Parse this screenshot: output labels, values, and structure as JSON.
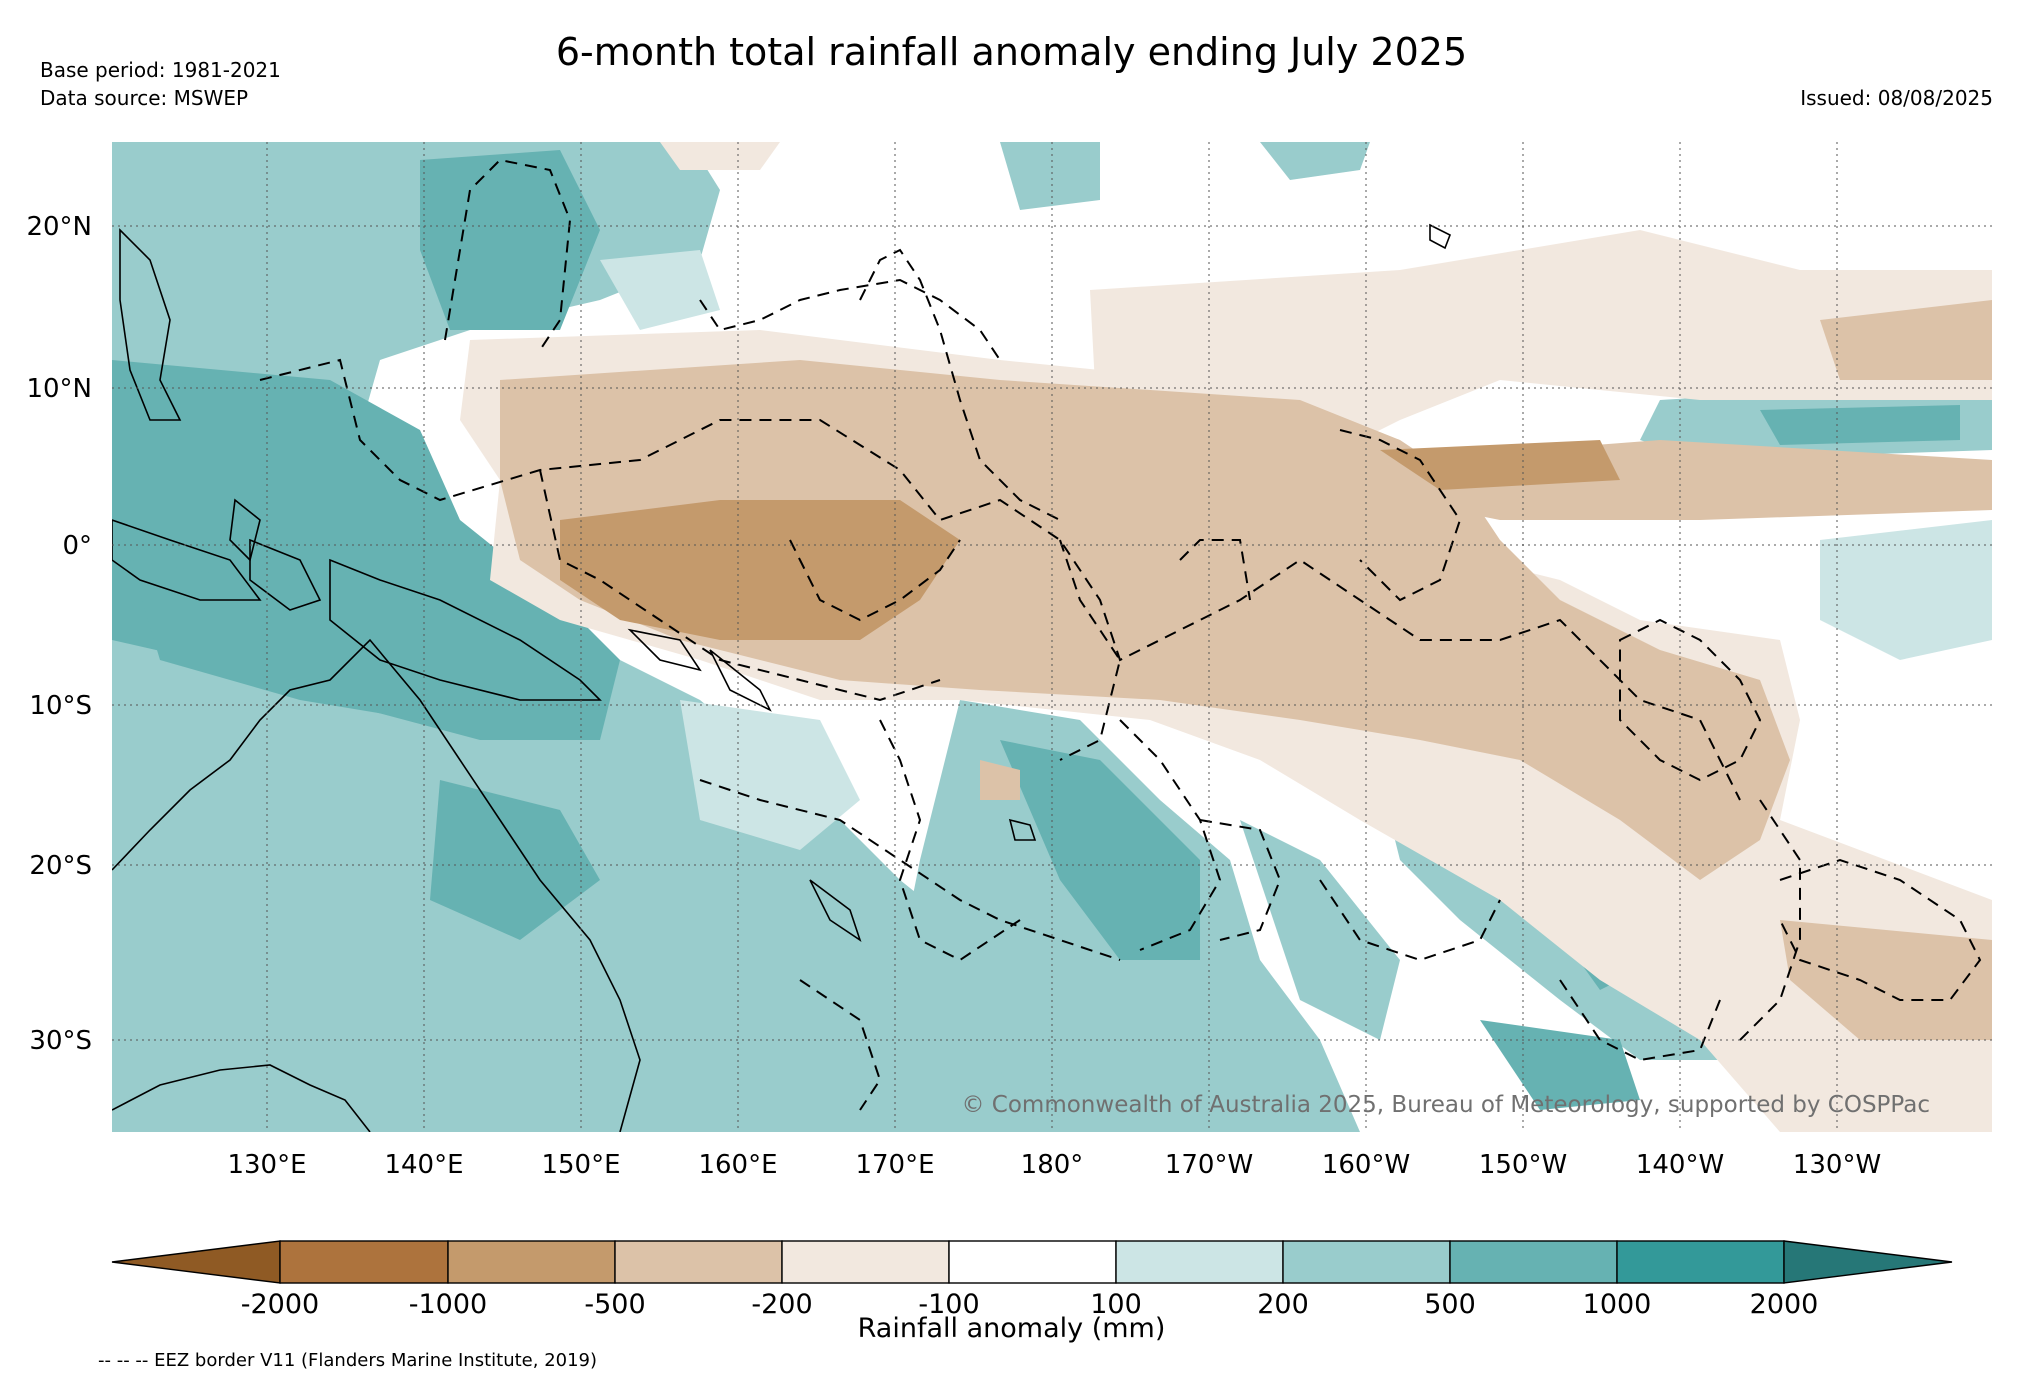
{
  "title": "6-month total rainfall anomaly ending July 2025",
  "base_period": "Base period: 1981-2021",
  "data_source": "Data source: MSWEP",
  "issued": "Issued: 08/08/2025",
  "copyright": "© Commonwealth of Australia 2025, Bureau of Meteorology, supported by COSPPac",
  "footnote": "-- -- -- EEZ border V11 (Flanders Marine Institute, 2019)",
  "axes": {
    "lon_labels": [
      "130°E",
      "140°E",
      "150°E",
      "160°E",
      "170°E",
      "180°",
      "170°W",
      "160°W",
      "150°W",
      "140°W",
      "130°W"
    ],
    "lat_labels": [
      "20°N",
      "10°N",
      "0°",
      "10°S",
      "20°S",
      "30°S"
    ],
    "lon_range": [
      120,
      240
    ],
    "lat_range": [
      -36,
      25
    ],
    "grid": true
  },
  "colorbar": {
    "label": "Rainfall anomaly (mm)",
    "tick_labels": [
      "-2000",
      "-1000",
      "-500",
      "-200",
      "-100",
      "100",
      "200",
      "500",
      "1000",
      "2000"
    ],
    "colors": [
      "#8f5a24",
      "#ad733d",
      "#c49a6c",
      "#dcc2a8",
      "#f2e8df",
      "#ffffff",
      "#cce5e5",
      "#99cccc",
      "#66b2b2",
      "#339999",
      "#267777"
    ],
    "extend": "both"
  },
  "colors": {
    "dry_strong": "#c49a6c",
    "dry_moderate": "#dcc2a8",
    "dry_light": "#f2e8df",
    "wet_light": "#cce5e5",
    "wet_moderate": "#99cccc",
    "wet_strong": "#66b2b2"
  }
}
